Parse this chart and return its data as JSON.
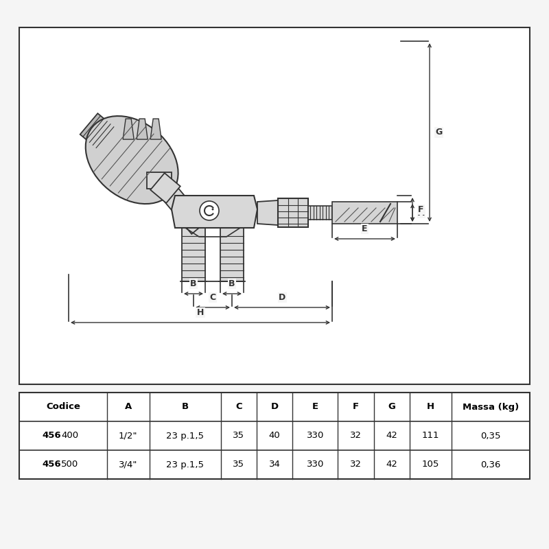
{
  "bg_color": "#f5f5f5",
  "border_color": "#444444",
  "line_color": "#333333",
  "gray_fill": "#c0c0c0",
  "light_gray": "#d8d8d8",
  "dark_gray": "#888888",
  "white": "#ffffff",
  "table": {
    "headers": [
      "Codice",
      "A",
      "B",
      "C",
      "D",
      "E",
      "F",
      "G",
      "H",
      "Massa (kg)"
    ],
    "rows": [
      [
        "456400",
        "1/2\"",
        "23 p.1,5",
        "35",
        "40",
        "330",
        "32",
        "42",
        "111",
        "0,35"
      ],
      [
        "456500",
        "3/4\"",
        "23 p.1,5",
        "35",
        "34",
        "330",
        "32",
        "42",
        "105",
        "0,36"
      ]
    ]
  }
}
